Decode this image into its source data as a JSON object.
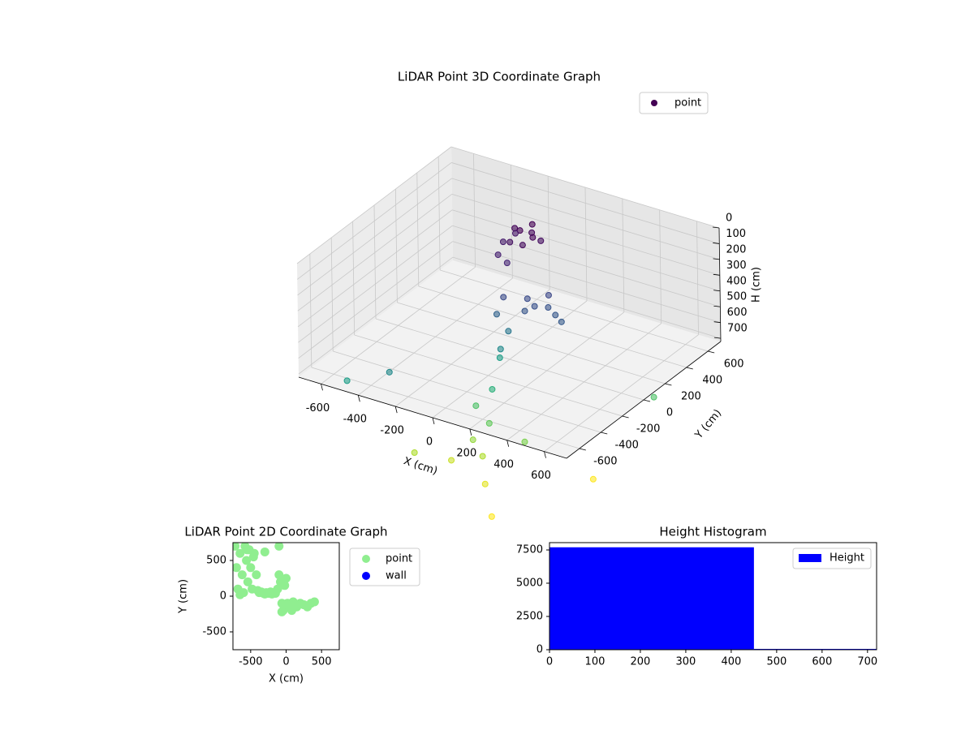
{
  "chart_data": [
    {
      "type": "scatter3d",
      "title": "LiDAR Point 3D Coordinate Graph",
      "xlabel": "X (cm)",
      "ylabel": "Y (cm)",
      "zlabel": "H (cm)",
      "xlim": [
        -720,
        720
      ],
      "ylim": [
        -720,
        720
      ],
      "zlim": [
        0,
        720
      ],
      "z_inverted": true,
      "xticks": [
        -600,
        -400,
        -200,
        0,
        200,
        400,
        600
      ],
      "yticks": [
        -600,
        -400,
        -200,
        0,
        200,
        400,
        600
      ],
      "zticks": [
        0,
        100,
        200,
        300,
        400,
        500,
        600,
        700
      ],
      "colormap": "viridis",
      "legend": "upper right",
      "grid": true,
      "series": [
        {
          "name": "point",
          "color": "#440154",
          "x": [
            -80,
            -40,
            0,
            40,
            -60,
            -100,
            20,
            -20,
            60,
            -120,
            -90,
            -30,
            100,
            150,
            200,
            250,
            300,
            180,
            120,
            0,
            -20,
            30,
            10,
            -30,
            20,
            -40,
            60,
            0,
            80,
            -60,
            150,
            -200,
            250,
            -300,
            600,
            500,
            300,
            -500
          ],
          "y": [
            200,
            180,
            220,
            160,
            120,
            240,
            100,
            260,
            200,
            160,
            60,
            40,
            0,
            -20,
            20,
            0,
            -30,
            60,
            -60,
            -50,
            -80,
            -60,
            -100,
            -40,
            -200,
            -250,
            -300,
            -350,
            -400,
            -450,
            -500,
            -550,
            -300,
            -600,
            300,
            -100,
            -700,
            -650
          ],
          "z": [
            20,
            10,
            30,
            15,
            60,
            80,
            40,
            5,
            50,
            100,
            120,
            140,
            300,
            320,
            330,
            350,
            360,
            280,
            340,
            300,
            400,
            500,
            600,
            700,
            800,
            900,
            950,
            1050,
            1100,
            1150,
            1200,
            1100,
            1000,
            600,
            900,
            1250,
            1250,
            700
          ]
        }
      ]
    },
    {
      "type": "scatter",
      "title": "LiDAR Point 2D Coordinate Graph",
      "xlabel": "X (cm)",
      "ylabel": "Y (cm)",
      "xlim": [
        -750,
        750
      ],
      "ylim": [
        -750,
        750
      ],
      "xticks": [
        -500,
        0,
        500
      ],
      "yticks": [
        -500,
        0,
        500
      ],
      "legend": "outside right",
      "series": [
        {
          "name": "point",
          "color": "#90ee90",
          "x": [
            -720,
            -700,
            -680,
            -650,
            -620,
            -600,
            -580,
            -560,
            -540,
            -520,
            -500,
            -480,
            -450,
            -420,
            -400,
            -380,
            -350,
            -320,
            -300,
            -280,
            -250,
            -220,
            -200,
            -180,
            -150,
            -120,
            -100,
            -80,
            -60,
            -40,
            -20,
            0,
            20,
            50,
            80,
            100,
            150,
            200,
            250,
            300,
            350,
            400,
            -650,
            -550,
            -460,
            -300,
            -100,
            -60
          ],
          "y": [
            700,
            400,
            100,
            600,
            300,
            50,
            700,
            500,
            200,
            650,
            400,
            100,
            600,
            300,
            80,
            50,
            60,
            40,
            30,
            50,
            40,
            60,
            30,
            50,
            40,
            100,
            300,
            200,
            -100,
            -200,
            150,
            250,
            -100,
            -150,
            -200,
            -80,
            -150,
            -100,
            -120,
            -150,
            -100,
            -80,
            20,
            650,
            550,
            620,
            700,
            -220
          ]
        },
        {
          "name": "wall",
          "color": "#0000ff",
          "x": [],
          "y": []
        }
      ]
    },
    {
      "type": "histogram",
      "title": "Height Histogram",
      "bins": [
        0,
        450,
        720
      ],
      "xlim": [
        0,
        720
      ],
      "ylim": [
        0,
        8050
      ],
      "xticks": [
        0,
        100,
        200,
        300,
        400,
        500,
        600,
        700
      ],
      "yticks": [
        0,
        2500,
        5000,
        7500
      ],
      "legend": "upper right",
      "series": [
        {
          "name": "Height",
          "color": "#0000ff",
          "values": [
            7700,
            60
          ]
        }
      ]
    }
  ]
}
